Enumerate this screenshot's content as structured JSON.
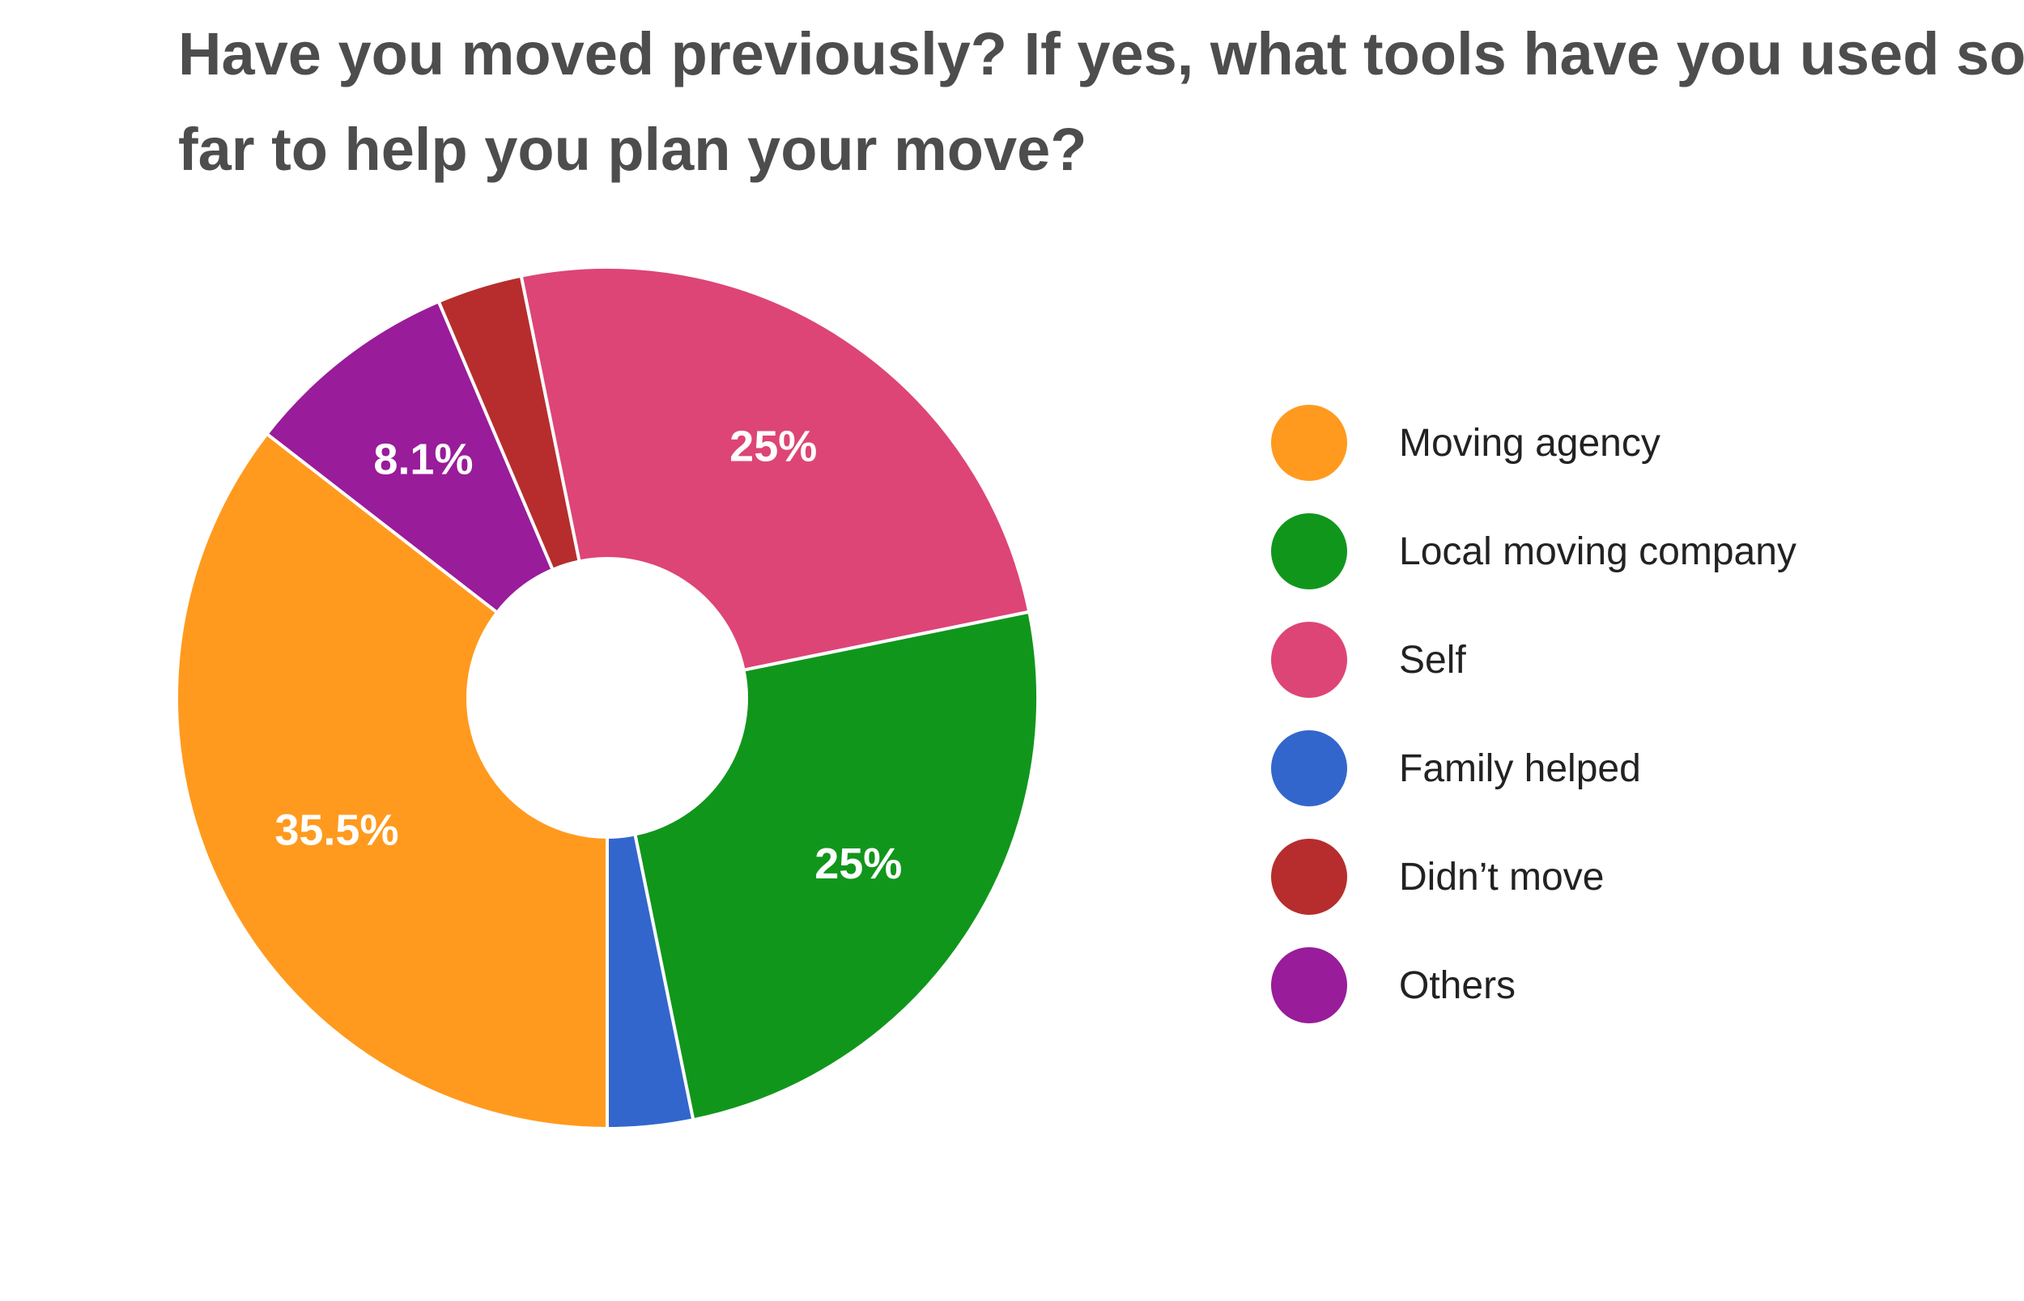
{
  "chart_data": {
    "type": "pie",
    "donut": true,
    "title_lines": [
      "Have you moved previously? If yes, what tools have you used so",
      "far to help you plan your move?"
    ],
    "slices": [
      {
        "label": "Moving agency",
        "value": 35.5,
        "data_label": "35.5%",
        "color": "#ff9a1e"
      },
      {
        "label": "Others",
        "value": 8.1,
        "data_label": "8.1%",
        "color": "#991c9a"
      },
      {
        "label": "Didn’t move",
        "value": 3.2,
        "data_label": "",
        "color": "#b72d2d"
      },
      {
        "label": "Self",
        "value": 25.0,
        "data_label": "25%",
        "color": "#dd4576"
      },
      {
        "label": "Local moving company",
        "value": 25.0,
        "data_label": "25%",
        "color": "#11961c"
      },
      {
        "label": "Family helped",
        "value": 3.2,
        "data_label": "",
        "color": "#3366cc"
      }
    ],
    "legend": {
      "placement": "right",
      "items": [
        {
          "label": "Moving agency",
          "color": "#ff9a1e"
        },
        {
          "label": "Local moving company",
          "color": "#11961c"
        },
        {
          "label": "Self",
          "color": "#dd4576"
        },
        {
          "label": "Family helped",
          "color": "#3366cc"
        },
        {
          "label": "Didn’t move",
          "color": "#b72d2d"
        },
        {
          "label": "Others",
          "color": "#991c9a"
        }
      ]
    },
    "label_color": "#ffffff"
  }
}
